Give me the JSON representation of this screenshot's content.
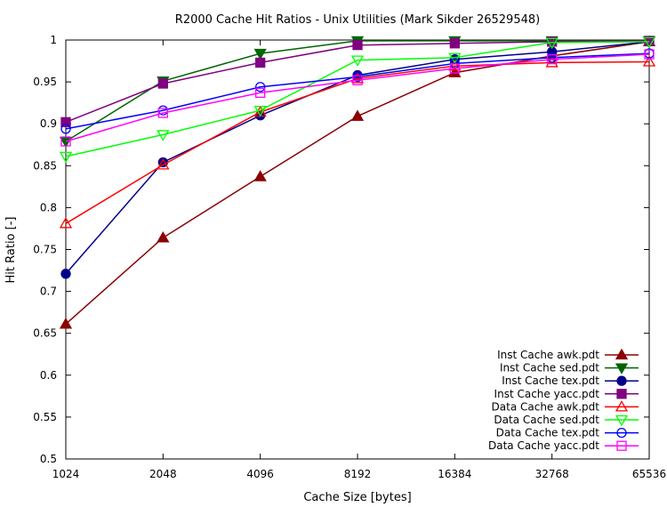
{
  "chart_data": {
    "type": "line",
    "title": "R2000 Cache Hit Ratios - Unix Utilities (Mark Sikder 26529548)",
    "xlabel": "Cache Size [bytes]",
    "ylabel": "Hit Ratio [-]",
    "x": [
      1024,
      2048,
      4096,
      8192,
      16384,
      32768,
      65536
    ],
    "x_scale": "log2",
    "x_tick_labels": [
      "1024",
      "2048",
      "4096",
      "8192",
      "16384",
      "32768",
      "65536"
    ],
    "ylim": [
      0.5,
      1.0
    ],
    "y_ticks": [
      0.5,
      0.55,
      0.6,
      0.65,
      0.7,
      0.75,
      0.8,
      0.85,
      0.9,
      0.95,
      1.0
    ],
    "y_tick_labels": [
      "0.5",
      "0.55",
      "0.6",
      "0.65",
      "0.7",
      "0.75",
      "0.8",
      "0.85",
      "0.9",
      "0.95",
      "1"
    ],
    "grid": false,
    "legend_position": "bottom-right",
    "series": [
      {
        "name": "Inst Cache awk.pdt",
        "color": "#8b0000",
        "marker": "triangle-up-filled",
        "values": [
          0.661,
          0.764,
          0.837,
          0.909,
          0.961,
          0.981,
          0.998
        ]
      },
      {
        "name": "Inst Cache sed.pdt",
        "color": "#006400",
        "marker": "triangle-down-filled",
        "values": [
          0.879,
          0.951,
          0.984,
          0.999,
          0.999,
          0.999,
          0.999
        ]
      },
      {
        "name": "Inst Cache tex.pdt",
        "color": "#00008b",
        "marker": "circle-filled",
        "values": [
          0.721,
          0.854,
          0.91,
          0.958,
          0.977,
          0.986,
          0.998
        ]
      },
      {
        "name": "Inst Cache yacc.pdt",
        "color": "#800080",
        "marker": "square-filled",
        "values": [
          0.902,
          0.948,
          0.973,
          0.994,
          0.996,
          0.998,
          0.999
        ]
      },
      {
        "name": "Data Cache awk.pdt",
        "color": "#ff0000",
        "marker": "triangle-up-open",
        "values": [
          0.781,
          0.851,
          0.914,
          0.954,
          0.969,
          0.973,
          0.974
        ]
      },
      {
        "name": "Data Cache sed.pdt",
        "color": "#00ff00",
        "marker": "triangle-down-open",
        "values": [
          0.861,
          0.887,
          0.916,
          0.976,
          0.979,
          0.997,
          0.998
        ]
      },
      {
        "name": "Data Cache tex.pdt",
        "color": "#0000ff",
        "marker": "circle-open",
        "values": [
          0.894,
          0.916,
          0.944,
          0.956,
          0.972,
          0.979,
          0.984
        ]
      },
      {
        "name": "Data Cache yacc.pdt",
        "color": "#ff00ff",
        "marker": "square-open",
        "values": [
          0.879,
          0.913,
          0.937,
          0.952,
          0.966,
          0.977,
          0.983
        ]
      }
    ]
  }
}
